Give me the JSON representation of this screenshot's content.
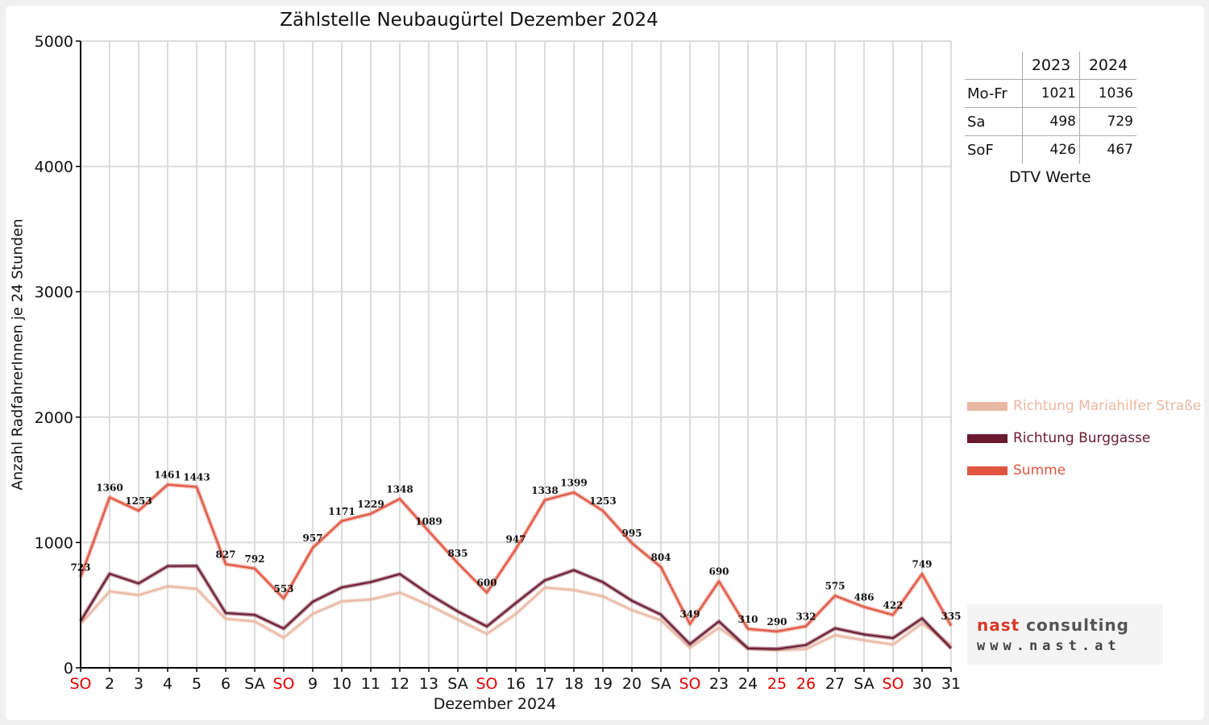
{
  "chart_data": {
    "type": "line",
    "title": "Zählstelle Neubaugürtel Dezember 2024",
    "xlabel": "Dezember 2024",
    "ylabel": "Anzahl RadfahrerInnen je 24 Stunden",
    "ylim": [
      0,
      5000
    ],
    "yticks": [
      "0",
      "1000",
      "2000",
      "3000",
      "4000",
      "5000"
    ],
    "grid": true,
    "legend_position": "right",
    "categories": [
      "SO",
      "2",
      "3",
      "4",
      "5",
      "6",
      "SA",
      "SO",
      "9",
      "10",
      "11",
      "12",
      "13",
      "SA",
      "SO",
      "16",
      "17",
      "18",
      "19",
      "20",
      "SA",
      "SO",
      "23",
      "24",
      "25",
      "26",
      "27",
      "SA",
      "SO",
      "30",
      "31"
    ],
    "category_colors": [
      "#e00000",
      "#111111",
      "#111111",
      "#111111",
      "#111111",
      "#111111",
      "#111111",
      "#e00000",
      "#111111",
      "#111111",
      "#111111",
      "#111111",
      "#111111",
      "#111111",
      "#e00000",
      "#111111",
      "#111111",
      "#111111",
      "#111111",
      "#111111",
      "#111111",
      "#e00000",
      "#111111",
      "#111111",
      "#e00000",
      "#e00000",
      "#111111",
      "#111111",
      "#e00000",
      "#111111",
      "#111111"
    ],
    "series": [
      {
        "name": "Richtung Mariahilfer Straße",
        "color": "#e9b8a3",
        "values": [
          350,
          610,
          580,
          650,
          630,
          390,
          370,
          240,
          430,
          530,
          545,
          600,
          500,
          385,
          270,
          430,
          640,
          620,
          570,
          460,
          380,
          160,
          320,
          155,
          140,
          150,
          260,
          220,
          185,
          355,
          180
        ]
      },
      {
        "name": "Richtung Burggasse",
        "color": "#6b1a30",
        "values": [
          373,
          750,
          673,
          811,
          813,
          437,
          422,
          313,
          527,
          641,
          684,
          748,
          589,
          450,
          330,
          517,
          698,
          779,
          683,
          535,
          424,
          189,
          370,
          155,
          150,
          182,
          315,
          266,
          237,
          394,
          155
        ]
      },
      {
        "name": "Summe",
        "color": "#e05540",
        "values": [
          723,
          1360,
          1253,
          1461,
          1443,
          827,
          792,
          553,
          957,
          1171,
          1229,
          1348,
          1089,
          835,
          600,
          947,
          1338,
          1399,
          1253,
          995,
          804,
          349,
          690,
          310,
          290,
          332,
          575,
          486,
          422,
          749,
          335
        ]
      }
    ],
    "data_labels": [
      "723",
      "1360",
      "1253",
      "1461",
      "1443",
      "827",
      "792",
      "553",
      "957",
      "1171",
      "1229",
      "1348",
      "1089",
      "835",
      "600",
      "947",
      "1338",
      "1399",
      "1253",
      "995",
      "804",
      "349",
      "690",
      "310",
      "290",
      "332",
      "575",
      "486",
      "422",
      "749",
      "335"
    ]
  },
  "dtv_table": {
    "caption": "DTV Werte",
    "headers": [
      "2023",
      "2024"
    ],
    "rows": [
      {
        "label": "Mo-Fr",
        "v2023": "1021",
        "v2024": "1036"
      },
      {
        "label": "Sa",
        "v2023": "498",
        "v2024": "729"
      },
      {
        "label": "SoF",
        "v2023": "426",
        "v2024": "467"
      }
    ]
  },
  "logo": {
    "brand": "nast",
    "brand2": "consulting",
    "url": "www.nast.at"
  }
}
